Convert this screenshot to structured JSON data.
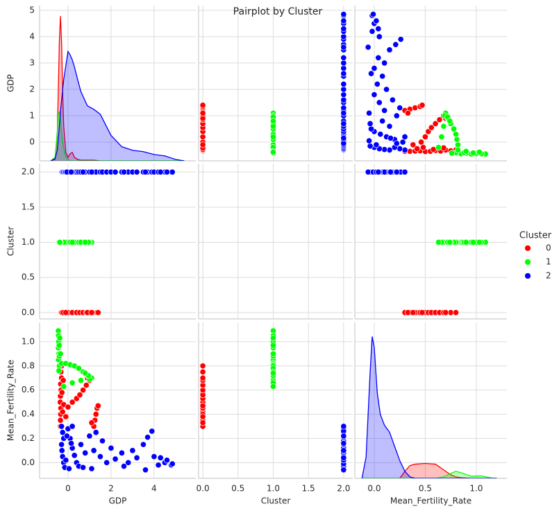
{
  "title": "Pairplot by Cluster",
  "legend_title": "Cluster",
  "chart_data": {
    "type": "pairplot",
    "grid": true,
    "variables": [
      {
        "name": "GDP",
        "xlim": [
          -1.32,
          5.94
        ],
        "ylim": [
          -0.71,
          5.18
        ],
        "xticks": [
          0,
          2,
          4
        ],
        "yticks": [
          0,
          1,
          2,
          3,
          4,
          5
        ],
        "kde": {
          "ylim": [
            0,
            2.2
          ],
          "x": [
            -0.8,
            -0.6,
            -0.5,
            -0.45,
            -0.4,
            -0.35,
            -0.3,
            -0.25,
            -0.2,
            -0.1,
            0,
            0.1,
            0.2,
            0.3,
            0.45,
            0.6,
            0.9,
            1.2,
            1.5,
            2,
            2.5,
            3,
            3.5,
            4,
            4.5,
            5,
            5.4
          ],
          "values": [
            [
              0,
              0.02,
              0.35,
              1.0,
              1.7,
              2.05,
              1.7,
              1.0,
              0.5,
              0.12,
              0.05,
              0.1,
              0.12,
              0.05,
              0.02,
              0.01,
              0.01,
              0.01,
              0,
              0,
              0,
              0,
              0,
              0,
              0,
              0,
              0
            ],
            [
              0,
              0.05,
              0.4,
              0.65,
              0.7,
              0.6,
              0.42,
              0.28,
              0.18,
              0.06,
              0.02,
              0,
              0,
              0,
              0,
              0,
              0,
              0,
              0,
              0,
              0,
              0,
              0,
              0,
              0,
              0,
              0
            ],
            [
              0,
              0.03,
              0.15,
              0.3,
              0.5,
              0.7,
              0.85,
              1.0,
              1.15,
              1.35,
              1.55,
              1.5,
              1.43,
              1.33,
              1.15,
              0.98,
              0.78,
              0.73,
              0.66,
              0.36,
              0.2,
              0.15,
              0.13,
              0.09,
              0.07,
              0.02,
              0
            ]
          ]
        }
      },
      {
        "name": "Cluster",
        "xlim": [
          -0.06,
          2.13
        ],
        "ylim": [
          -0.09,
          2.12
        ],
        "xticks": [
          {
            "value": 0,
            "label": "0.0"
          },
          {
            "value": 0.5,
            "label": "0.5"
          },
          {
            "value": 1,
            "label": "1.0"
          },
          {
            "value": 1.5,
            "label": "1.5"
          },
          {
            "value": 2,
            "label": "2.0"
          }
        ],
        "yticks": [
          {
            "value": 0,
            "label": "0.0"
          },
          {
            "value": 0.5,
            "label": "0.5"
          },
          {
            "value": 1,
            "label": "1.0"
          },
          {
            "value": 1.5,
            "label": "1.5"
          },
          {
            "value": 2,
            "label": "2.0"
          }
        ]
      },
      {
        "name": "Mean_Fertility_Rate",
        "xlim": [
          -0.19,
          1.3
        ],
        "ylim": [
          -0.13,
          1.16
        ],
        "xticks": [
          {
            "value": 0,
            "label": "0.0"
          },
          {
            "value": 0.5,
            "label": "0.5"
          },
          {
            "value": 1,
            "label": "1.0"
          }
        ],
        "yticks": [
          {
            "value": 0,
            "label": "0.0"
          },
          {
            "value": 0.2,
            "label": "0.2"
          },
          {
            "value": 0.4,
            "label": "0.4"
          },
          {
            "value": 0.6,
            "label": "0.6"
          },
          {
            "value": 0.8,
            "label": "0.8"
          },
          {
            "value": 1,
            "label": "1.0"
          }
        ],
        "kde": {
          "ylim": [
            0,
            2.2
          ],
          "x": [
            -0.12,
            -0.08,
            -0.04,
            -0.02,
            0,
            0.03,
            0.06,
            0.1,
            0.15,
            0.2,
            0.25,
            0.3,
            0.35,
            0.4,
            0.5,
            0.6,
            0.68,
            0.75,
            0.8,
            0.85,
            0.95,
            1.05,
            1.15,
            1.2
          ],
          "values": [
            [
              0,
              0,
              0,
              0,
              0,
              0,
              0,
              0,
              0,
              0,
              0,
              0.1,
              0.18,
              0.2,
              0.21,
              0.2,
              0.12,
              0.05,
              0.02,
              0.01,
              0,
              0,
              0,
              0
            ],
            [
              0,
              0,
              0,
              0,
              0,
              0,
              0,
              0,
              0,
              0,
              0,
              0,
              0,
              0,
              0,
              0,
              0.02,
              0.07,
              0.1,
              0.08,
              0.03,
              0.035,
              0.005,
              0
            ],
            [
              0,
              0.3,
              1.5,
              2.0,
              1.85,
              1.2,
              0.9,
              0.75,
              0.65,
              0.45,
              0.25,
              0.1,
              0.02,
              0,
              0,
              0,
              0,
              0,
              0,
              0,
              0,
              0,
              0,
              0
            ]
          ]
        }
      }
    ],
    "series": [
      {
        "name": "0",
        "color": "#ff0000",
        "values": [
          [
            -0.35,
            -0.35,
            -0.34,
            -0.33,
            -0.36,
            -0.35,
            -0.32,
            -0.34,
            -0.3,
            -0.33,
            -0.3,
            -0.25,
            -0.2,
            -0.28,
            -0.22,
            0.0,
            0.2,
            0.4,
            0.55,
            0.7,
            0.85,
            1.0,
            0.9,
            1.2,
            1.25,
            1.3,
            1.35,
            1.4,
            1.1,
            -0.1
          ],
          [
            0,
            0,
            0,
            0,
            0,
            0,
            0,
            0,
            0,
            0,
            0,
            0,
            0,
            0,
            0,
            0,
            0,
            0,
            0,
            0,
            0,
            0,
            0,
            0,
            0,
            0,
            0,
            0,
            0,
            0
          ],
          [
            0.3,
            0.35,
            0.4,
            0.45,
            0.5,
            0.55,
            0.6,
            0.65,
            0.7,
            0.75,
            0.8,
            0.42,
            0.48,
            0.58,
            0.68,
            0.46,
            0.5,
            0.53,
            0.56,
            0.6,
            0.64,
            0.68,
            0.7,
            0.3,
            0.35,
            0.4,
            0.45,
            0.47,
            0.33,
            0.38
          ]
        ]
      },
      {
        "name": "1",
        "color": "#00ff00",
        "values": [
          [
            -0.45,
            -0.44,
            -0.43,
            -0.45,
            -0.42,
            -0.44,
            -0.4,
            -0.42,
            -0.4,
            -0.41,
            -0.3,
            -0.1,
            0.1,
            0.3,
            0.5,
            0.7,
            0.9,
            1.1,
            1.0,
            0.6,
            0.95,
            0.8,
            0.2,
            -0.2,
            -0.35,
            -0.38
          ],
          [
            1,
            1,
            1,
            1,
            1,
            1,
            1,
            1,
            1,
            1,
            1,
            1,
            1,
            1,
            1,
            1,
            1,
            1,
            1,
            1,
            1,
            1,
            1,
            1,
            1,
            1
          ],
          [
            1.09,
            1.05,
            1.0,
            0.95,
            0.9,
            0.85,
            0.8,
            0.76,
            0.88,
            0.97,
            0.82,
            0.82,
            0.81,
            0.8,
            0.78,
            0.75,
            0.72,
            0.7,
            0.69,
            0.68,
            0.72,
            0.74,
            0.66,
            0.63,
            0.9,
            1.03
          ]
        ]
      },
      {
        "name": "2",
        "color": "#0000ff",
        "values": [
          [
            -0.3,
            -0.25,
            -0.2,
            -0.3,
            -0.28,
            -0.25,
            -0.2,
            -0.15,
            0,
            0.1,
            0.2,
            0.3,
            0.4,
            0.5,
            0.6,
            0.8,
            1.0,
            1.2,
            1.3,
            1.5,
            1.6,
            1.8,
            2.0,
            2.2,
            2.5,
            2.8,
            3.0,
            3.2,
            3.5,
            3.7,
            3.9,
            4.0,
            4.2,
            4.5,
            4.8,
            -0.1,
            0.05,
            0.7,
            1.1,
            2.6,
            3.6,
            0.2,
            -0.05,
            0.15,
            4.85,
            4.6,
            4.3
          ],
          [
            2,
            2,
            2,
            2,
            2,
            2,
            2,
            2,
            2,
            2,
            2,
            2,
            2,
            2,
            2,
            2,
            2,
            2,
            2,
            2,
            2,
            2,
            2,
            2,
            2,
            2,
            2,
            2,
            2,
            2,
            2,
            2,
            2,
            2,
            2,
            2,
            2,
            2,
            2,
            2,
            2,
            2,
            2,
            2,
            2,
            2,
            2
          ],
          [
            0.3,
            0.25,
            0.2,
            0.15,
            0.1,
            0.05,
            0.0,
            -0.04,
            0.28,
            0.2,
            0.12,
            0.06,
            0.0,
            -0.03,
            0.15,
            0.08,
            0.22,
            0.1,
            0.25,
            0.05,
            0.18,
            0.0,
            0.12,
            0.03,
            0.08,
            0.0,
            0.1,
            0.04,
            0.15,
            0.21,
            0.26,
            0.05,
            -0.02,
            0.0,
            -0.02,
            0.02,
            -0.05,
            -0.04,
            -0.05,
            -0.03,
            -0.06,
            0.3,
            0.22,
            0.16,
            -0.01,
            0.02,
            0.04
          ]
        ]
      }
    ]
  }
}
